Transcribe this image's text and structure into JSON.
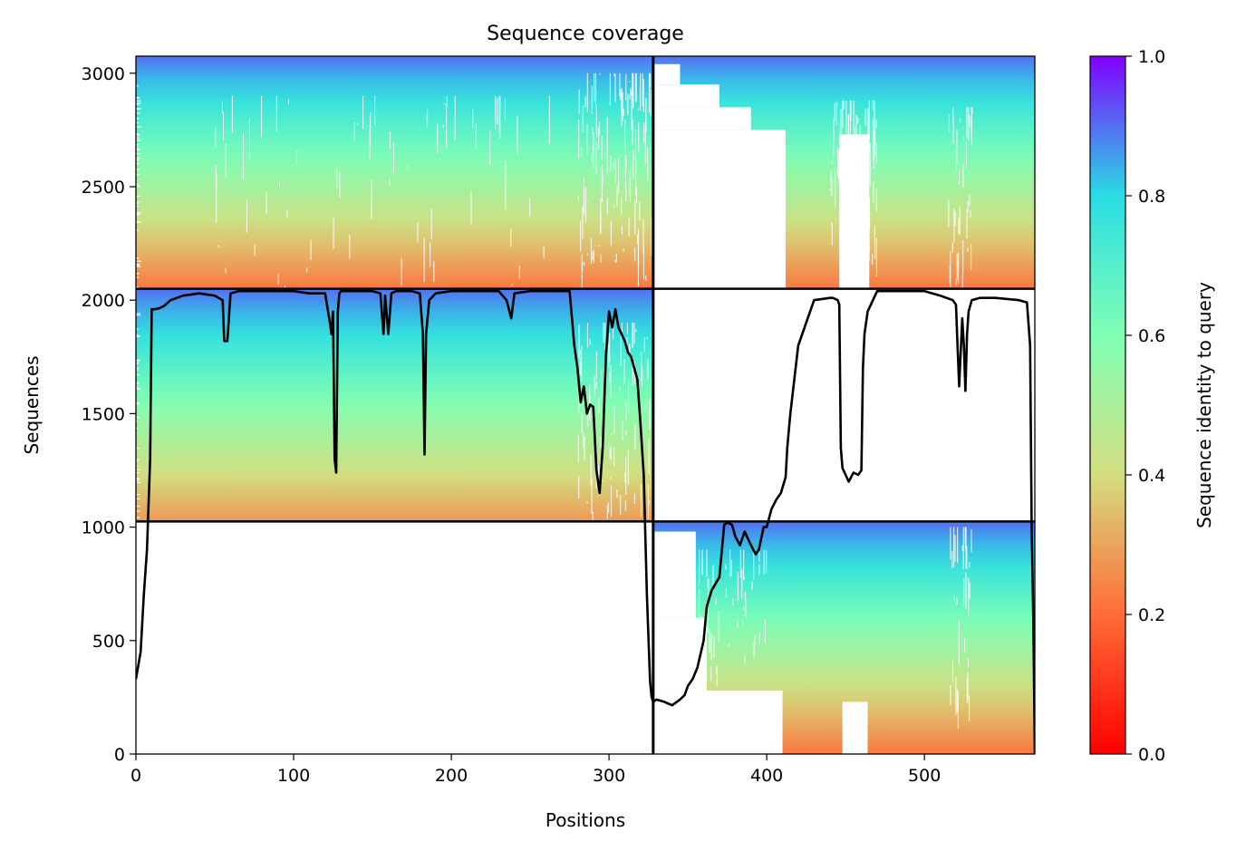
{
  "chart_data": {
    "type": "heatmap",
    "title": "Sequence coverage",
    "xlabel": "Positions",
    "ylabel": "Sequences",
    "xlim": [
      0,
      570
    ],
    "ylim": [
      0,
      3075
    ],
    "xticks": [
      0,
      100,
      200,
      300,
      400,
      500
    ],
    "yticks": [
      0,
      500,
      1000,
      1500,
      2000,
      2500,
      3000
    ],
    "colorbar": {
      "label": "Sequence identity to query",
      "range": [
        0.0,
        1.0
      ],
      "ticks": [
        "0.0",
        "0.2",
        "0.4",
        "0.6",
        "0.8",
        "1.0"
      ],
      "colormap": "rainbow_r",
      "stops": [
        "#ff0000",
        "#ff6c38",
        "#d4dd80",
        "#80ffb4",
        "#2adde4",
        "#8000ff"
      ]
    },
    "chain_boundary_x": 328,
    "block_boundaries_y": [
      1025,
      2050,
      3075
    ],
    "blocks": [
      {
        "x": [
          0,
          328
        ],
        "y": [
          2050,
          3075
        ],
        "identity_top": 0.9,
        "identity_bottom": 0.22,
        "pale_band": [
          2730,
          2890
        ]
      },
      {
        "x": [
          328,
          570
        ],
        "y": [
          2050,
          3075
        ],
        "identity_top": 0.9,
        "identity_bottom": 0.22,
        "pale_band": [
          2730,
          2890
        ]
      },
      {
        "x": [
          0,
          328
        ],
        "y": [
          1025,
          2050
        ],
        "identity_top": 0.9,
        "identity_bottom": 0.28,
        "pale_band": [
          1025,
          1580
        ]
      },
      {
        "x": [
          328,
          570
        ],
        "y": [
          0,
          1025
        ],
        "identity_top": 0.9,
        "identity_bottom": 0.22,
        "pale_band": [
          0,
          280
        ]
      }
    ],
    "coverage_line": {
      "color": "#000000",
      "x": [
        0,
        3,
        5,
        7,
        9,
        10,
        12,
        15,
        18,
        22,
        30,
        40,
        50,
        55,
        56,
        58,
        60,
        65,
        80,
        100,
        110,
        120,
        123,
        124,
        125,
        126,
        127,
        128,
        129,
        130,
        135,
        150,
        155,
        157,
        158,
        160,
        162,
        165,
        175,
        180,
        182,
        183,
        184,
        186,
        190,
        200,
        220,
        230,
        235,
        238,
        240,
        250,
        260,
        270,
        275,
        278,
        280,
        282,
        284,
        286,
        288,
        290,
        292,
        294,
        296,
        298,
        300,
        302,
        304,
        306,
        308,
        310,
        312,
        314,
        316,
        318,
        320,
        322,
        324,
        326,
        327,
        328,
        330,
        335,
        340,
        345,
        348,
        350,
        353,
        356,
        360,
        362,
        365,
        370,
        373,
        375,
        378,
        380,
        383,
        386,
        390,
        393,
        395,
        398,
        400,
        403,
        406,
        409,
        412,
        413,
        415,
        420,
        430,
        440,
        442,
        445,
        446,
        447,
        448,
        450,
        452,
        455,
        458,
        460,
        461,
        462,
        464,
        470,
        480,
        500,
        510,
        518,
        520,
        521,
        522,
        524,
        525,
        526,
        527,
        528,
        530,
        535,
        545,
        560,
        565,
        567,
        568,
        569,
        570
      ],
      "y": [
        330,
        450,
        700,
        900,
        1300,
        1960,
        1960,
        1965,
        1975,
        2000,
        2020,
        2030,
        2020,
        2000,
        1820,
        1820,
        2030,
        2040,
        2040,
        2040,
        2030,
        2030,
        1900,
        1850,
        1950,
        1300,
        1240,
        1950,
        2030,
        2040,
        2040,
        2040,
        2030,
        1850,
        2020,
        1850,
        2030,
        2040,
        2040,
        2030,
        1850,
        1320,
        1850,
        2000,
        2030,
        2040,
        2040,
        2040,
        2000,
        1920,
        2030,
        2040,
        2040,
        2040,
        2040,
        1800,
        1700,
        1550,
        1620,
        1500,
        1540,
        1530,
        1250,
        1150,
        1350,
        1750,
        1950,
        1880,
        1960,
        1880,
        1850,
        1820,
        1770,
        1750,
        1700,
        1650,
        1450,
        1230,
        700,
        320,
        250,
        230,
        240,
        230,
        215,
        240,
        260,
        300,
        330,
        380,
        500,
        650,
        720,
        780,
        1010,
        1020,
        1010,
        960,
        920,
        980,
        920,
        880,
        900,
        1000,
        1000,
        1080,
        1120,
        1150,
        1220,
        1350,
        1500,
        1800,
        2000,
        2010,
        2010,
        2000,
        1980,
        1350,
        1260,
        1230,
        1200,
        1240,
        1230,
        1250,
        1700,
        1850,
        1950,
        2040,
        2040,
        2040,
        2020,
        2000,
        1980,
        1800,
        1620,
        1920,
        1800,
        1600,
        1850,
        1950,
        2000,
        2010,
        2010,
        2000,
        1990,
        1800,
        1000,
        600,
        0
      ]
    }
  }
}
